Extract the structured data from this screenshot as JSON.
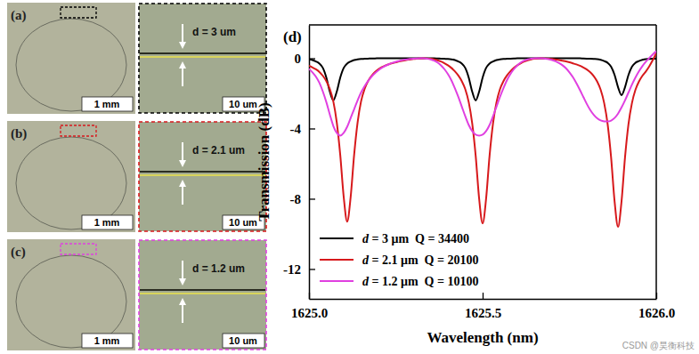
{
  "chart_data": {
    "type": "line",
    "title": "(d)",
    "x_label": "Wavelength (nm)",
    "y_label": "Transmission (dB)",
    "x": [
      1625,
      1625.01,
      1625.02,
      1625.03,
      1625.04,
      1625.05,
      1625.06,
      1625.07,
      1625.08,
      1625.09,
      1625.1,
      1625.11,
      1625.12,
      1625.13,
      1625.14,
      1625.15,
      1625.16,
      1625.17,
      1625.18,
      1625.19,
      1625.2,
      1625.21,
      1625.22,
      1625.23,
      1625.24,
      1625.25,
      1625.26,
      1625.27,
      1625.28,
      1625.29,
      1625.3,
      1625.31,
      1625.32,
      1625.33,
      1625.34,
      1625.35,
      1625.36,
      1625.37,
      1625.38,
      1625.39,
      1625.4,
      1625.41,
      1625.42,
      1625.43,
      1625.44,
      1625.45,
      1625.46,
      1625.47,
      1625.48,
      1625.49,
      1625.5,
      1625.51,
      1625.52,
      1625.53,
      1625.54,
      1625.55,
      1625.56,
      1625.57,
      1625.58,
      1625.59,
      1625.6,
      1625.61,
      1625.62,
      1625.63,
      1625.64,
      1625.65,
      1625.66,
      1625.67,
      1625.68,
      1625.69,
      1625.7,
      1625.71,
      1625.72,
      1625.73,
      1625.74,
      1625.75,
      1625.76,
      1625.77,
      1625.78,
      1625.79,
      1625.8,
      1625.81,
      1625.82,
      1625.83,
      1625.84,
      1625.85,
      1625.86,
      1625.87,
      1625.88,
      1625.89,
      1625.9,
      1625.91,
      1625.92,
      1625.93,
      1625.94,
      1625.95,
      1625.96,
      1625.97,
      1625.98,
      1625.99,
      1626
    ],
    "series": [
      {
        "name": "d = 3 μm  Q = 34400",
        "color": "#000000",
        "values": [
          -0.06,
          -0.1,
          -0.18,
          -0.3,
          -0.55,
          -1.1,
          -1.9,
          -2.4,
          -1.9,
          -1.1,
          -0.55,
          -0.3,
          -0.18,
          -0.1,
          -0.06,
          -0.04,
          -0.03,
          -0.02,
          -0.01,
          -0.01,
          0,
          0,
          0,
          0,
          0,
          0,
          0,
          0,
          0,
          0,
          0,
          0,
          0,
          0,
          0,
          0,
          0,
          -0.01,
          -0.02,
          -0.03,
          -0.04,
          -0.06,
          -0.1,
          -0.18,
          -0.3,
          -0.55,
          -1.1,
          -1.9,
          -2.4,
          -1.9,
          -1.1,
          -0.55,
          -0.3,
          -0.18,
          -0.1,
          -0.06,
          -0.04,
          -0.03,
          -0.02,
          -0.01,
          0,
          0,
          0,
          0,
          0,
          0,
          0,
          0,
          0,
          0,
          0,
          0,
          0,
          0,
          0,
          0,
          0,
          0,
          0,
          -0.01,
          -0.02,
          -0.03,
          -0.04,
          -0.05,
          -0.09,
          -0.16,
          -0.26,
          -0.48,
          -0.95,
          -1.65,
          -2.1,
          -1.65,
          -0.95,
          -0.48,
          -0.26,
          -0.16,
          -0.09,
          -0.05,
          -0.04,
          -0.03,
          -0.02
        ]
      },
      {
        "name": "d = 2.1 μm  Q = 20100",
        "color": "#d7191c",
        "values": [
          -0.43,
          -0.52,
          -0.63,
          -0.78,
          -1.0,
          -1.3,
          -1.75,
          -2.45,
          -3.65,
          -5.5,
          -7.9,
          -9.3,
          -7.9,
          -5.5,
          -3.65,
          -2.45,
          -1.75,
          -1.3,
          -1.0,
          -0.78,
          -0.62,
          -0.5,
          -0.41,
          -0.34,
          -0.28,
          -0.23,
          -0.18,
          -0.14,
          -0.1,
          -0.07,
          -0.04,
          -0.02,
          -0.01,
          0,
          -0.01,
          -0.03,
          -0.06,
          -0.11,
          -0.18,
          -0.28,
          -0.4,
          -0.55,
          -0.74,
          -0.98,
          -1.3,
          -1.76,
          -2.5,
          -3.7,
          -5.55,
          -8.0,
          -9.4,
          -8.0,
          -5.55,
          -3.7,
          -2.5,
          -1.76,
          -1.3,
          -0.98,
          -0.74,
          -0.55,
          -0.4,
          -0.28,
          -0.18,
          -0.11,
          -0.06,
          -0.03,
          -0.01,
          0,
          -0.01,
          -0.02,
          -0.04,
          -0.07,
          -0.1,
          -0.14,
          -0.18,
          -0.23,
          -0.29,
          -0.35,
          -0.42,
          -0.52,
          -0.64,
          -0.8,
          -1.02,
          -1.33,
          -1.8,
          -2.55,
          -3.75,
          -5.65,
          -8.15,
          -9.6,
          -8.15,
          -5.65,
          -3.75,
          -2.55,
          -1.8,
          -1.33,
          -1.0,
          -0.75,
          -0.45,
          -0.1,
          0.3
        ]
      },
      {
        "name": "d = 1.2 μm  Q = 10100",
        "color": "#e040e0",
        "values": [
          -0.6,
          -0.8,
          -1.05,
          -1.4,
          -1.9,
          -2.5,
          -3.2,
          -3.85,
          -4.25,
          -4.4,
          -4.25,
          -3.9,
          -3.4,
          -2.9,
          -2.4,
          -1.95,
          -1.6,
          -1.3,
          -1.05,
          -0.85,
          -0.68,
          -0.54,
          -0.43,
          -0.34,
          -0.26,
          -0.2,
          -0.15,
          -0.1,
          -0.07,
          -0.04,
          -0.02,
          -0.01,
          0,
          0,
          -0.02,
          -0.06,
          -0.13,
          -0.24,
          -0.4,
          -0.62,
          -0.9,
          -1.25,
          -1.7,
          -2.2,
          -2.75,
          -3.3,
          -3.8,
          -4.15,
          -4.35,
          -4.4,
          -4.35,
          -4.15,
          -3.8,
          -3.3,
          -2.75,
          -2.2,
          -1.7,
          -1.25,
          -0.9,
          -0.62,
          -0.4,
          -0.24,
          -0.13,
          -0.06,
          -0.02,
          0,
          0,
          0,
          -0.02,
          -0.05,
          -0.1,
          -0.17,
          -0.27,
          -0.4,
          -0.57,
          -0.8,
          -1.08,
          -1.42,
          -1.8,
          -2.2,
          -2.6,
          -2.95,
          -3.22,
          -3.42,
          -3.54,
          -3.59,
          -3.6,
          -3.55,
          -3.4,
          -3.15,
          -2.8,
          -2.4,
          -1.95,
          -1.5,
          -1.1,
          -0.75,
          -0.45,
          -0.2,
          0.02,
          0.22,
          0.4
        ]
      }
    ],
    "xlim": [
      1625,
      1626
    ],
    "xticks": [
      {
        "value": 1625,
        "label": "1625.0"
      },
      {
        "value": 1625.5,
        "label": "1625.5"
      },
      {
        "value": 1626,
        "label": "1626.0"
      }
    ],
    "ylim": [
      -13.7,
      1.9
    ],
    "yticks": [
      0,
      -4,
      -8,
      -12
    ],
    "grid": false,
    "legend": "lower left"
  },
  "image_panels": [
    {
      "label": "(a)",
      "scale_bar": "1 mm",
      "gap_label": "d = 3 um",
      "inset_scale_bar": "10 um",
      "color": "#000000"
    },
    {
      "label": "(b)",
      "scale_bar": "1 mm",
      "gap_label": "d = 2.1 um",
      "inset_scale_bar": "10 um",
      "color": "#d7191c"
    },
    {
      "label": "(c)",
      "scale_bar": "1 mm",
      "gap_label": "d = 1.2 um",
      "inset_scale_bar": "10 um",
      "color": "#e040e0"
    }
  ],
  "watermark": "CSDN @昊衡科技"
}
